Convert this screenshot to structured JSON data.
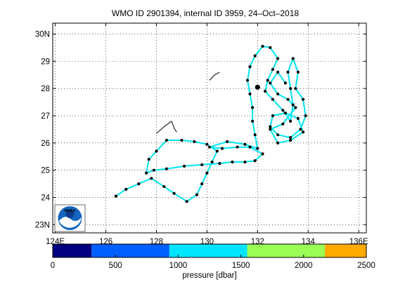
{
  "title": "WMO ID 2901394, internal ID 3959, 24–Oct–2018",
  "logo": {
    "text": "NOAA",
    "icon": "noaa-logo"
  },
  "map": {
    "lon_range": [
      123.9,
      136.3
    ],
    "lat_range": [
      22.7,
      30.4
    ],
    "x_ticks": [
      {
        "value": 124,
        "label": "124E"
      },
      {
        "value": 126,
        "label": "126"
      },
      {
        "value": 128,
        "label": "128"
      },
      {
        "value": 130,
        "label": "130"
      },
      {
        "value": 132,
        "label": "132"
      },
      {
        "value": 134,
        "label": "134"
      },
      {
        "value": 136,
        "label": "136E"
      }
    ],
    "y_ticks": [
      {
        "value": 30,
        "label": "30N"
      },
      {
        "value": 29,
        "label": "29"
      },
      {
        "value": 28,
        "label": "28"
      },
      {
        "value": 27,
        "label": "27"
      },
      {
        "value": 26,
        "label": "26"
      },
      {
        "value": 25,
        "label": "25"
      },
      {
        "value": 24,
        "label": "24"
      },
      {
        "value": 23,
        "label": "23N"
      }
    ],
    "grid": true,
    "grid_style": "dotted",
    "track_color": "#00e5ee",
    "point_color": "#000000",
    "coast_color": "#000000"
  },
  "colorbar": {
    "label": "pressure [dbar]",
    "range": [
      0,
      2500
    ],
    "ticks": [
      {
        "value": 0,
        "label": "0"
      },
      {
        "value": 500,
        "label": "500"
      },
      {
        "value": 1000,
        "label": "1000"
      },
      {
        "value": 1500,
        "label": "1500"
      },
      {
        "value": 2000,
        "label": "2000"
      },
      {
        "value": 2500,
        "label": "2500"
      }
    ],
    "bins": [
      {
        "from": 0,
        "to": 310,
        "color": "#000080"
      },
      {
        "from": 310,
        "to": 930,
        "color": "#0060ff"
      },
      {
        "from": 930,
        "to": 1550,
        "color": "#00e5ff"
      },
      {
        "from": 1550,
        "to": 2170,
        "color": "#99ff55"
      },
      {
        "from": 2170,
        "to": 2500,
        "color": "#ffaa00"
      }
    ]
  },
  "chart_data": {
    "type": "scatter",
    "title": "WMO ID 2901394, internal ID 3959, 24–Oct–2018",
    "xlabel": "",
    "ylabel": "",
    "xlim": [
      123.9,
      136.3
    ],
    "ylim": [
      22.7,
      30.4
    ],
    "grid": true,
    "series": [
      {
        "kind": "float-track",
        "points": [
          [
            126.4,
            24.05
          ],
          [
            126.8,
            24.3
          ],
          [
            127.3,
            24.5
          ],
          [
            127.8,
            24.7
          ],
          [
            128.3,
            24.4
          ],
          [
            128.7,
            24.15
          ],
          [
            129.2,
            23.85
          ],
          [
            129.6,
            24.1
          ],
          [
            129.8,
            24.5
          ],
          [
            130.0,
            24.9
          ],
          [
            130.2,
            25.3
          ],
          [
            130.4,
            25.7
          ],
          [
            130.0,
            25.95
          ],
          [
            129.5,
            26.05
          ],
          [
            129.0,
            26.1
          ],
          [
            128.4,
            26.1
          ],
          [
            128.0,
            25.7
          ],
          [
            127.7,
            25.4
          ],
          [
            127.6,
            24.9
          ],
          [
            127.9,
            25.0
          ],
          [
            128.4,
            25.05
          ],
          [
            129.1,
            25.15
          ],
          [
            129.8,
            25.2
          ],
          [
            130.5,
            25.25
          ],
          [
            131.0,
            25.3
          ],
          [
            131.5,
            25.3
          ],
          [
            131.9,
            25.35
          ],
          [
            132.2,
            25.6
          ],
          [
            131.7,
            25.85
          ],
          [
            131.2,
            25.85
          ],
          [
            130.6,
            25.8
          ],
          [
            130.1,
            25.85
          ],
          [
            130.8,
            26.05
          ],
          [
            131.5,
            25.95
          ],
          [
            132.0,
            25.8
          ],
          [
            131.9,
            26.3
          ],
          [
            131.8,
            26.8
          ],
          [
            131.8,
            27.3
          ],
          [
            131.7,
            27.8
          ],
          [
            131.6,
            28.3
          ],
          [
            131.7,
            28.8
          ],
          [
            131.9,
            29.2
          ],
          [
            132.2,
            29.55
          ],
          [
            132.5,
            29.5
          ],
          [
            132.8,
            29.1
          ],
          [
            132.6,
            28.7
          ],
          [
            132.4,
            28.3
          ],
          [
            132.3,
            27.9
          ],
          [
            132.6,
            27.6
          ],
          [
            133.0,
            27.2
          ],
          [
            133.3,
            26.8
          ],
          [
            133.4,
            27.4
          ],
          [
            133.3,
            28.0
          ],
          [
            133.2,
            28.6
          ],
          [
            133.4,
            29.1
          ],
          [
            133.6,
            28.6
          ],
          [
            133.5,
            28.0
          ],
          [
            133.8,
            27.6
          ],
          [
            133.9,
            27.0
          ],
          [
            133.7,
            26.5
          ],
          [
            133.3,
            26.2
          ],
          [
            132.8,
            26.3
          ],
          [
            132.5,
            26.6
          ],
          [
            132.6,
            27.0
          ],
          [
            133.1,
            27.1
          ],
          [
            133.6,
            26.9
          ],
          [
            133.8,
            26.4
          ],
          [
            133.3,
            26.1
          ],
          [
            132.8,
            26.0
          ],
          [
            132.5,
            26.5
          ],
          [
            133.0,
            26.7
          ],
          [
            133.5,
            27.3
          ],
          [
            133.2,
            27.6
          ],
          [
            132.8,
            27.8
          ],
          [
            132.5,
            28.2
          ],
          [
            132.8,
            28.6
          ],
          [
            133.1,
            28.2
          ]
        ]
      }
    ],
    "coastlines": [
      [
        [
          128.8,
          26.4
        ],
        [
          128.7,
          26.55
        ],
        [
          128.6,
          26.8
        ]
      ],
      [
        [
          128.6,
          26.8
        ],
        [
          128.3,
          26.6
        ],
        [
          128.0,
          26.35
        ]
      ],
      [
        [
          130.1,
          28.3
        ],
        [
          130.3,
          28.5
        ],
        [
          130.5,
          28.6
        ]
      ]
    ],
    "colorbar": {
      "label": "pressure [dbar]",
      "range": [
        0,
        2500
      ]
    }
  }
}
